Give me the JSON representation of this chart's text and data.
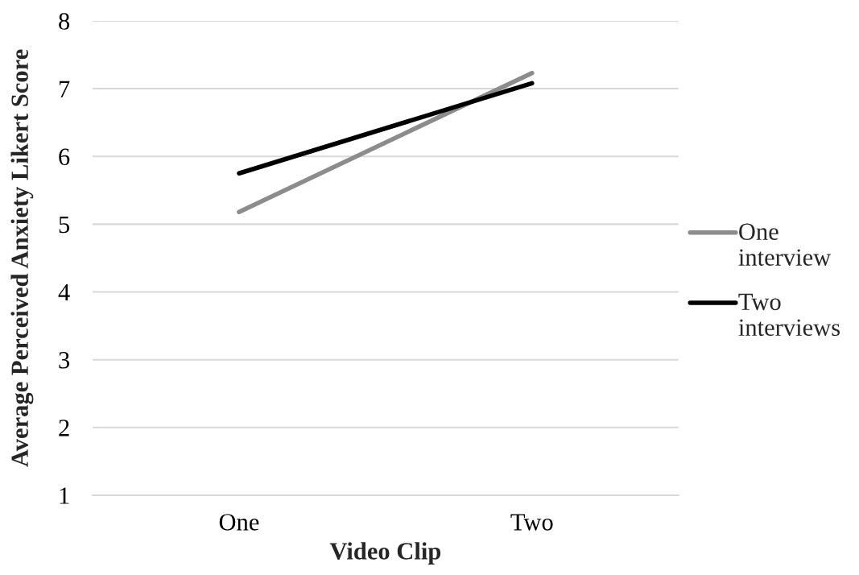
{
  "chart_data": {
    "type": "line",
    "xlabel": "Video Clip",
    "ylabel": "Average Perceived Anxiety Likert Score",
    "categories": [
      "One",
      "Two"
    ],
    "series": [
      {
        "name": "One interview",
        "color": "#8c8c8c",
        "values": [
          5.18,
          7.23
        ]
      },
      {
        "name": "Two interviews",
        "color": "#000000",
        "values": [
          5.75,
          7.08
        ]
      }
    ],
    "ylim": [
      1,
      8
    ],
    "yticks": [
      1,
      2,
      3,
      4,
      5,
      6,
      7,
      8
    ],
    "grid": "y",
    "legend": "right",
    "line_style": "solid"
  }
}
